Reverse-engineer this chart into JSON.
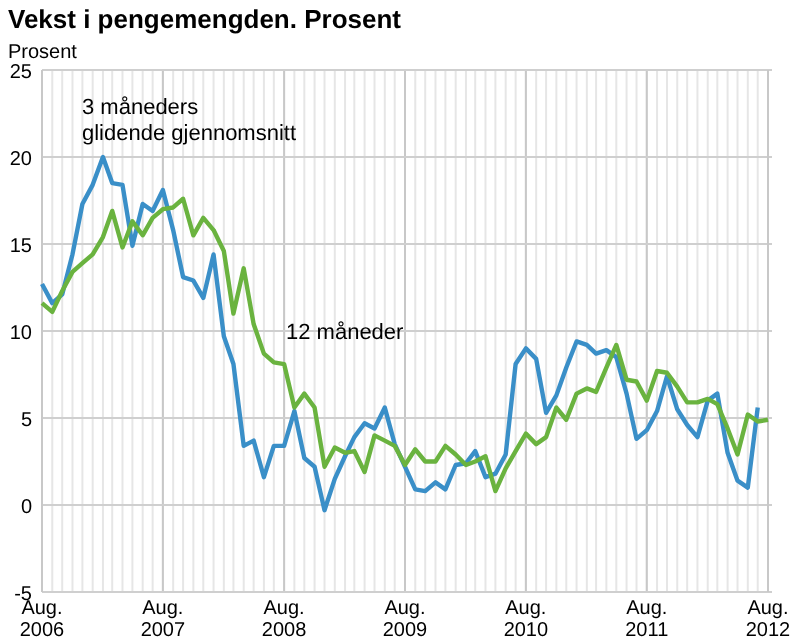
{
  "chart_data": {
    "type": "line",
    "title": "Vekst i pengemengden. Prosent",
    "ylabel": "Prosent",
    "x": [
      "2006-08",
      "2006-09",
      "2006-10",
      "2006-11",
      "2006-12",
      "2007-01",
      "2007-02",
      "2007-03",
      "2007-04",
      "2007-05",
      "2007-06",
      "2007-07",
      "2007-08",
      "2007-09",
      "2007-10",
      "2007-11",
      "2007-12",
      "2008-01",
      "2008-02",
      "2008-03",
      "2008-04",
      "2008-05",
      "2008-06",
      "2008-07",
      "2008-08",
      "2008-09",
      "2008-10",
      "2008-11",
      "2008-12",
      "2009-01",
      "2009-02",
      "2009-03",
      "2009-04",
      "2009-05",
      "2009-06",
      "2009-07",
      "2009-08",
      "2009-09",
      "2009-10",
      "2009-11",
      "2009-12",
      "2010-01",
      "2010-02",
      "2010-03",
      "2010-04",
      "2010-05",
      "2010-06",
      "2010-07",
      "2010-08",
      "2010-09",
      "2010-10",
      "2010-11",
      "2010-12",
      "2011-01",
      "2011-02",
      "2011-03",
      "2011-04",
      "2011-05",
      "2011-06",
      "2011-07",
      "2011-08",
      "2011-09",
      "2011-10",
      "2011-11",
      "2011-12",
      "2012-01",
      "2012-02",
      "2012-03",
      "2012-04",
      "2012-05",
      "2012-06",
      "2012-07",
      "2012-08"
    ],
    "series": [
      {
        "name": "3 måneders glidende gjennomsnitt",
        "color": "#3a8fc8",
        "values": [
          12.7,
          11.6,
          12.1,
          14.4,
          17.3,
          18.4,
          20.0,
          18.5,
          18.4,
          14.9,
          17.3,
          16.9,
          18.1,
          15.8,
          13.1,
          12.9,
          11.9,
          14.4,
          9.7,
          8.1,
          3.4,
          3.7,
          1.6,
          3.4,
          3.4,
          5.4,
          2.7,
          2.2,
          -0.3,
          1.5,
          2.8,
          3.9,
          4.7,
          4.4,
          5.6,
          3.5,
          2.2,
          0.9,
          0.8,
          1.3,
          0.9,
          2.3,
          2.4,
          3.1,
          1.6,
          1.8,
          2.9,
          8.1,
          9.0,
          8.4,
          5.3,
          6.3,
          7.9,
          9.4,
          9.2,
          8.7,
          8.9,
          8.5,
          6.4,
          3.8,
          4.3,
          5.4,
          7.4,
          5.5,
          4.6,
          3.9,
          6.0,
          6.4,
          3.0,
          1.4,
          1.0,
          5.6,
          null
        ]
      },
      {
        "name": "12 måneder",
        "color": "#6ab33f",
        "values": [
          11.6,
          11.1,
          12.3,
          13.4,
          13.9,
          14.4,
          15.4,
          16.9,
          14.8,
          16.3,
          15.5,
          16.5,
          17.0,
          17.1,
          17.6,
          15.5,
          16.5,
          15.8,
          14.6,
          11.0,
          13.6,
          10.4,
          8.7,
          8.2,
          8.1,
          5.6,
          6.4,
          5.6,
          2.2,
          3.3,
          3.0,
          3.1,
          1.9,
          4.0,
          3.7,
          3.4,
          2.3,
          3.2,
          2.5,
          2.5,
          3.4,
          2.9,
          2.3,
          2.5,
          2.8,
          0.8,
          2.1,
          3.1,
          4.1,
          3.5,
          3.9,
          5.6,
          4.9,
          6.4,
          6.7,
          6.5,
          7.9,
          9.2,
          7.2,
          7.1,
          6.0,
          7.7,
          7.6,
          6.8,
          5.9,
          5.9,
          6.1,
          5.8,
          4.4,
          2.9,
          5.2,
          4.8,
          4.9
        ]
      }
    ],
    "xlim": [
      "2006-08",
      "2012-08"
    ],
    "xticks": [
      {
        "value": "2006-08",
        "label": "Aug. 2006"
      },
      {
        "value": "2007-08",
        "label": "Aug. 2007"
      },
      {
        "value": "2008-08",
        "label": "Aug. 2008"
      },
      {
        "value": "2009-08",
        "label": "Aug. 2009"
      },
      {
        "value": "2010-08",
        "label": "Aug. 2010"
      },
      {
        "value": "2011-08",
        "label": "Aug. 2011"
      },
      {
        "value": "2012-08",
        "label": "Aug. 2012"
      }
    ],
    "ylim": [
      -5,
      25
    ],
    "yticks": [
      -5,
      0,
      5,
      10,
      15,
      20,
      25
    ],
    "grid": true,
    "marker": "none",
    "line_style": "solid"
  }
}
